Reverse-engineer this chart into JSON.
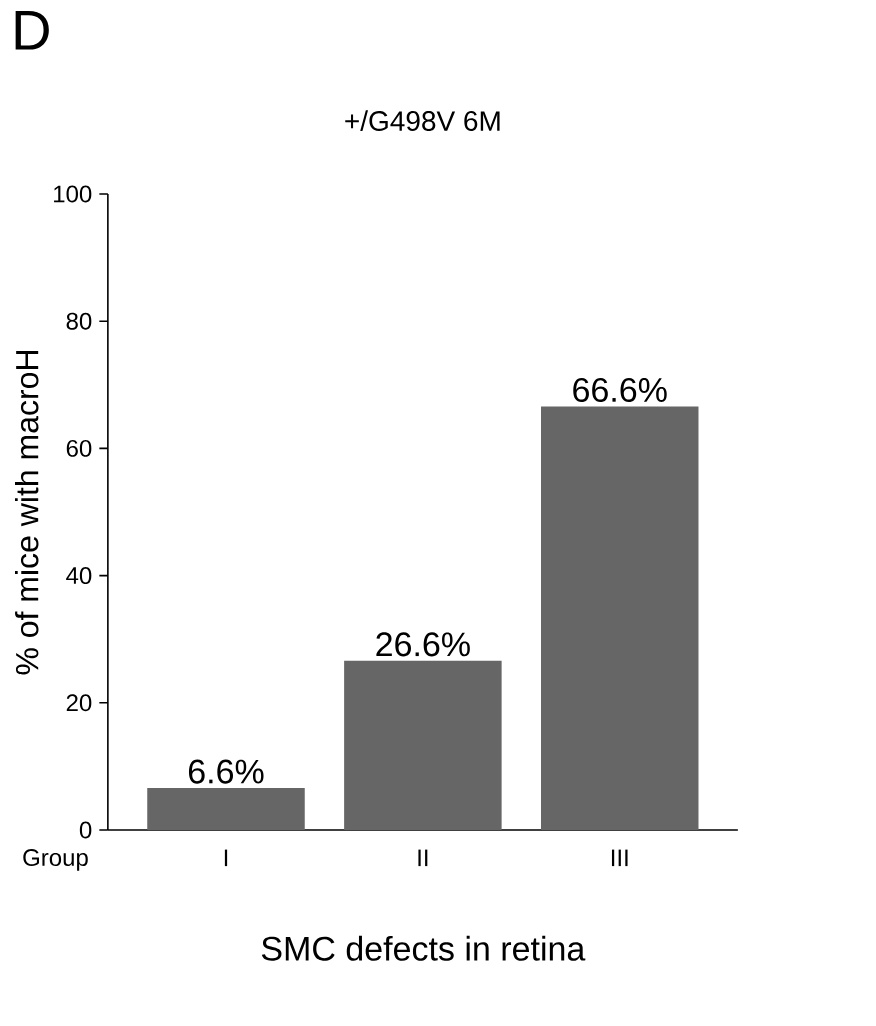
{
  "chart_data": {
    "type": "bar",
    "title": "+/G498V 6M",
    "xlabel": "SMC defects in retina",
    "ylabel": "% of mice with macroH",
    "annotations": [
      "D",
      "Group"
    ],
    "categories": [
      "I",
      "II",
      "III"
    ],
    "values": [
      6.6,
      26.6,
      66.6
    ],
    "value_labels": [
      "6.6%",
      "26.6%",
      "66.6%"
    ],
    "color": "#666666",
    "ylim": [
      0,
      100
    ],
    "yticks": [
      0,
      20,
      40,
      60,
      80,
      100
    ]
  }
}
